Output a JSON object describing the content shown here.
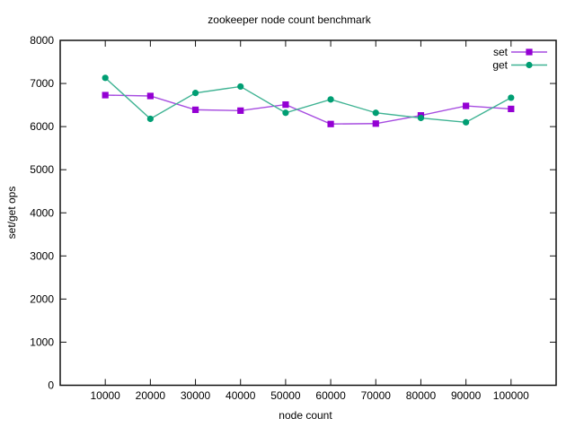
{
  "chart_data": {
    "type": "line",
    "title": "zookeeper node count benchmark",
    "xlabel": "node count",
    "ylabel": "set/get ops",
    "x": [
      10000,
      20000,
      30000,
      40000,
      50000,
      60000,
      70000,
      80000,
      90000,
      100000
    ],
    "series": [
      {
        "name": "set",
        "color": "#9400d3",
        "line_color": "#a64ce0",
        "marker": "square",
        "values": [
          6730,
          6710,
          6390,
          6370,
          6510,
          6060,
          6070,
          6260,
          6480,
          6410
        ]
      },
      {
        "name": "get",
        "color": "#009e73",
        "line_color": "#3fb393",
        "marker": "circle",
        "values": [
          7130,
          6180,
          6780,
          6930,
          6320,
          6630,
          6320,
          6200,
          6100,
          6670
        ]
      }
    ],
    "xlim": [
      0,
      110000
    ],
    "ylim": [
      0,
      8000
    ],
    "xticks": [
      10000,
      20000,
      30000,
      40000,
      50000,
      60000,
      70000,
      80000,
      90000,
      100000
    ],
    "yticks": [
      0,
      1000,
      2000,
      3000,
      4000,
      5000,
      6000,
      7000,
      8000
    ],
    "grid": false,
    "legend": {
      "position": "top-right-inside",
      "entries": [
        "set",
        "get"
      ]
    },
    "background": "#ffffff",
    "border_color": "#111111"
  }
}
